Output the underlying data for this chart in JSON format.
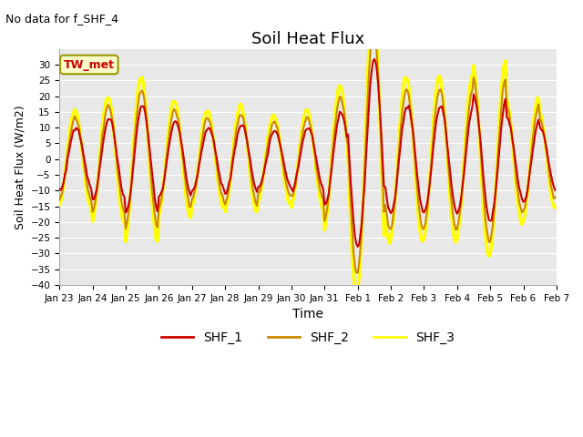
{
  "title": "Soil Heat Flux",
  "subtitle": "No data for f_SHF_4",
  "xlabel": "Time",
  "ylabel": "Soil Heat Flux (W/m2)",
  "ylim": [
    -40,
    35
  ],
  "yticks": [
    -40,
    -35,
    -30,
    -25,
    -20,
    -15,
    -10,
    -5,
    0,
    5,
    10,
    15,
    20,
    25,
    30
  ],
  "x_tick_labels": [
    "Jan 23",
    "Jan 24",
    "Jan 25",
    "Jan 26",
    "Jan 27",
    "Jan 28",
    "Jan 29",
    "Jan 30",
    "Jan 31",
    "Feb 1",
    "Feb 2",
    "Feb 3",
    "Feb 4",
    "Feb 5",
    "Feb 6",
    "Feb 7"
  ],
  "color_shf1": "#cc0000",
  "color_shf2": "#cc8800",
  "color_shf3": "#ffff00",
  "lw_shf1": 1.5,
  "lw_shf2": 1.5,
  "lw_shf3": 2.5,
  "bg_color": "#e8e8e8",
  "annotation_text": "TW_met",
  "annot_fc": "#ffffcc",
  "annot_ec": "#999900",
  "grid_color": "#ffffff",
  "subtitle_fontsize": 9,
  "title_fontsize": 13,
  "ylabel_fontsize": 9,
  "xlabel_fontsize": 10,
  "legend_fontsize": 10,
  "tick_fontsize": 7.5
}
